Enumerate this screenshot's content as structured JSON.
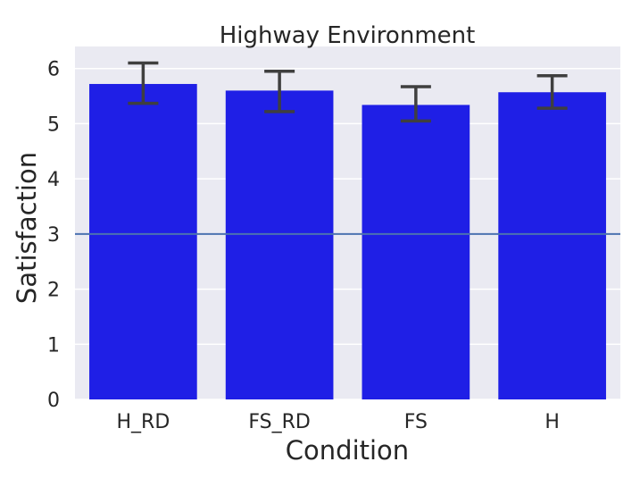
{
  "chart_data": {
    "type": "bar",
    "title": "Highway Environment",
    "xlabel": "Condition",
    "ylabel": "Satisfaction",
    "categories": [
      "H_RD",
      "FS_RD",
      "FS",
      "H"
    ],
    "values": [
      5.72,
      5.6,
      5.34,
      5.57
    ],
    "error_low": [
      5.37,
      5.22,
      5.05,
      5.28
    ],
    "error_high": [
      6.1,
      5.95,
      5.67,
      5.87
    ],
    "reference_line": 3,
    "ylim": [
      0,
      6.4
    ],
    "yticks": [
      0,
      1,
      2,
      3,
      4,
      5,
      6
    ],
    "grid": true,
    "colors": {
      "bar": "#1f1fe6",
      "error": "#3f3f3f",
      "reference": "#4c72b0",
      "background": "#eaeaf2",
      "grid": "#ffffff"
    }
  }
}
